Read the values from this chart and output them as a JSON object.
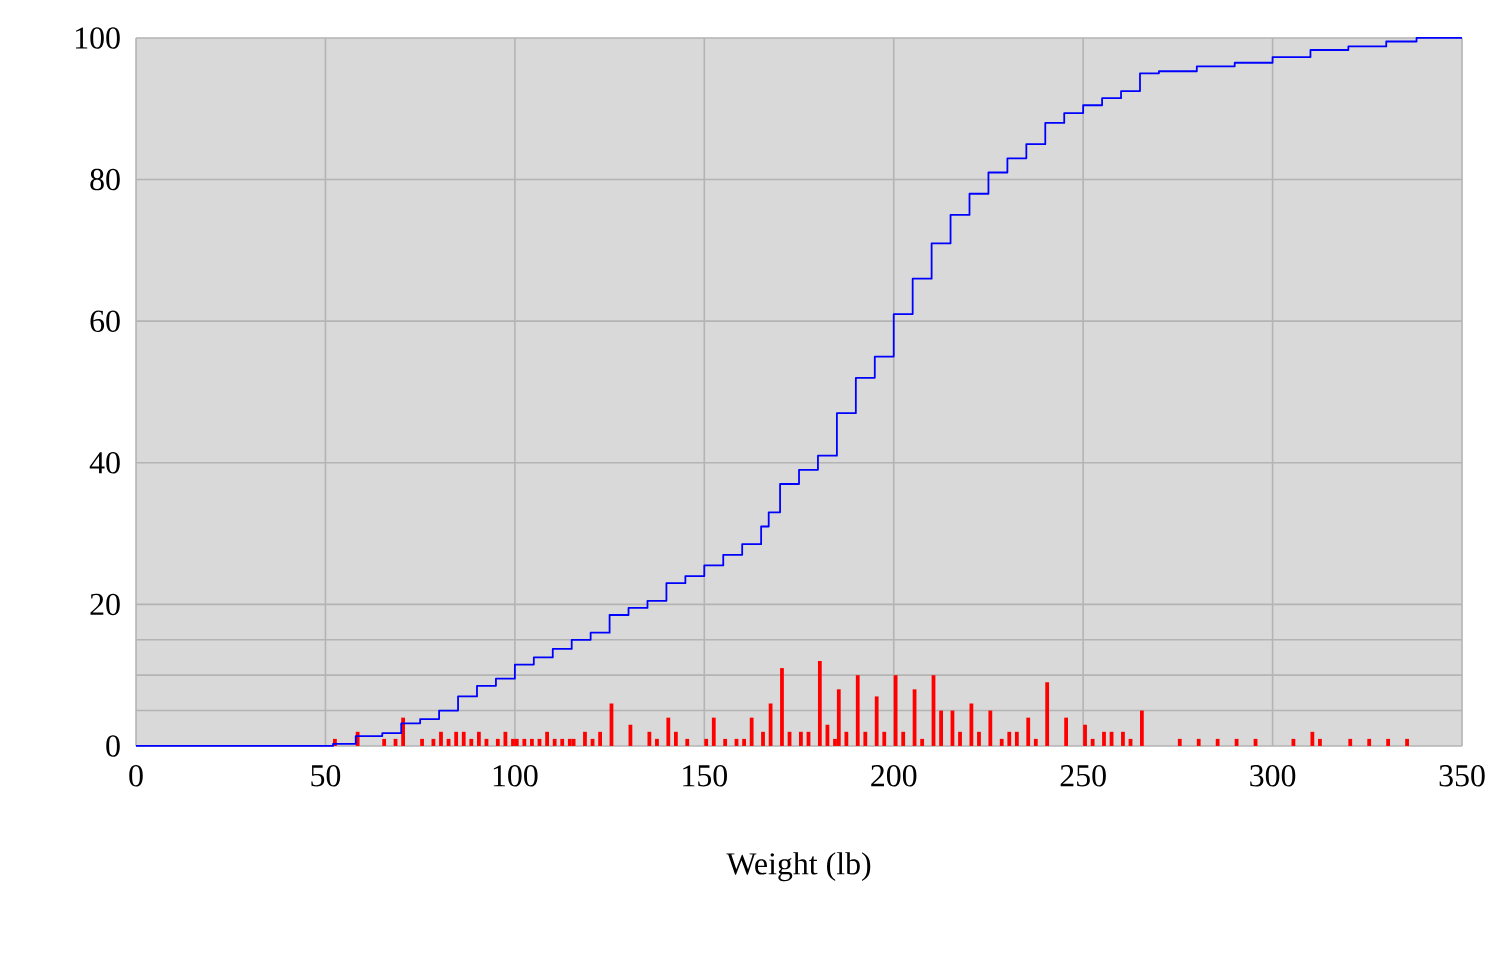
{
  "chart_data": {
    "type": "histogram",
    "xlabel": "Weight (lb)",
    "xlim": [
      0,
      350
    ],
    "xticks": [
      0,
      50,
      100,
      150,
      200,
      250,
      300,
      350
    ],
    "ylim": [
      0,
      100
    ],
    "yticks": [
      0,
      {
        "value": 5,
        "label": null
      },
      {
        "value": 10,
        "label": null
      },
      {
        "value": 15,
        "label": null
      },
      20,
      40,
      60,
      80,
      100
    ],
    "grid": true,
    "bins": [
      50,
      51,
      52,
      53,
      54,
      55,
      56,
      57,
      58,
      59,
      60,
      61,
      62,
      63,
      64,
      65,
      66,
      67,
      68,
      69,
      70,
      71,
      72,
      73,
      74,
      75,
      76,
      77,
      78,
      79,
      80,
      81,
      82,
      83,
      84,
      85,
      86,
      87,
      88,
      89,
      90,
      91,
      92,
      93,
      94,
      95,
      96,
      97,
      98,
      99,
      100,
      101,
      102,
      103,
      104,
      105,
      106,
      107,
      108,
      109,
      110,
      111,
      112,
      113,
      114,
      115,
      116,
      117,
      118,
      119,
      120,
      121,
      122,
      123,
      124,
      125,
      126,
      127,
      128,
      129,
      130,
      131,
      132,
      133,
      134,
      135,
      136,
      137,
      138,
      139,
      140,
      141,
      142,
      143,
      144,
      145,
      146,
      147,
      148,
      149,
      150,
      151,
      152,
      153,
      154,
      155,
      156,
      157,
      158,
      159,
      160,
      161,
      162,
      163,
      164,
      165,
      166,
      167,
      168,
      169,
      170,
      171,
      172,
      173,
      174,
      175,
      176,
      177,
      178,
      179,
      180,
      181,
      182,
      183,
      184,
      185,
      186,
      187,
      188,
      189,
      190,
      191,
      192,
      193,
      194,
      195,
      196,
      197,
      198,
      199,
      200,
      201,
      202,
      203,
      204,
      205,
      206,
      207,
      208,
      209,
      210,
      211,
      212,
      213,
      214,
      215,
      216,
      217,
      218,
      219,
      220,
      221,
      222,
      223,
      224,
      225,
      226,
      227,
      228,
      229,
      230,
      231,
      232,
      233,
      234,
      235,
      236,
      237,
      238,
      239,
      240,
      241,
      242,
      243,
      244,
      245,
      246,
      247,
      248,
      249,
      250,
      251,
      252,
      253,
      254,
      255,
      256,
      257,
      258,
      259,
      260,
      261,
      262,
      263,
      264,
      265,
      266,
      267,
      268,
      269,
      270,
      271,
      272,
      273,
      274,
      275,
      276,
      277,
      278,
      279,
      280,
      281,
      282,
      283,
      284,
      285,
      286,
      287,
      288,
      289,
      290,
      291,
      292,
      293,
      294,
      295,
      296,
      297,
      298,
      299,
      300,
      301,
      302,
      303,
      304,
      305,
      306,
      307,
      308,
      309,
      310,
      311,
      312,
      313,
      314,
      315,
      316,
      317,
      318,
      319,
      320,
      321,
      322,
      323,
      324,
      325,
      326,
      327,
      328,
      329,
      330,
      331,
      332,
      333,
      334,
      335,
      336,
      337,
      338,
      339,
      340
    ],
    "series": [
      {
        "color": "#ff0000",
        "values": [
          0,
          0,
          1,
          0,
          0,
          0,
          0,
          0,
          2,
          0,
          0,
          0,
          0,
          0,
          0,
          1,
          0,
          0,
          1,
          0,
          4,
          0,
          0,
          0,
          0,
          1,
          0,
          0,
          1,
          0,
          2,
          0,
          1,
          0,
          2,
          0,
          2,
          0,
          1,
          0,
          2,
          0,
          1,
          0,
          0,
          1,
          0,
          2,
          0,
          1,
          1,
          0,
          1,
          0,
          1,
          0,
          1,
          0,
          2,
          0,
          1,
          0,
          1,
          0,
          1,
          1,
          0,
          0,
          2,
          0,
          1,
          0,
          2,
          0,
          0,
          6,
          0,
          0,
          0,
          0,
          3,
          0,
          0,
          0,
          0,
          2,
          0,
          1,
          0,
          0,
          4,
          0,
          2,
          0,
          0,
          1,
          0,
          0,
          0,
          0,
          1,
          0,
          4,
          0,
          0,
          1,
          0,
          0,
          1,
          0,
          1,
          0,
          4,
          0,
          0,
          2,
          0,
          6,
          0,
          0,
          11,
          0,
          2,
          0,
          0,
          2,
          0,
          2,
          0,
          0,
          12,
          0,
          3,
          0,
          1,
          8,
          0,
          2,
          0,
          0,
          10,
          0,
          2,
          0,
          0,
          7,
          0,
          2,
          0,
          0,
          10,
          0,
          2,
          0,
          0,
          8,
          0,
          1,
          0,
          0,
          10,
          0,
          5,
          0,
          0,
          5,
          0,
          2,
          0,
          0,
          6,
          0,
          2,
          0,
          0,
          5,
          0,
          0,
          1,
          0,
          2,
          0,
          2,
          0,
          0,
          4,
          0,
          1,
          0,
          0,
          9,
          0,
          0,
          0,
          0,
          4,
          0,
          0,
          0,
          0,
          3,
          0,
          1,
          0,
          0,
          2,
          0,
          2,
          0,
          0,
          2,
          0,
          1,
          0,
          0,
          5,
          0,
          0,
          0,
          0,
          0,
          0,
          0,
          0,
          0,
          1,
          0,
          0,
          0,
          0,
          1,
          0,
          0,
          0,
          0,
          1,
          0,
          0,
          0,
          0,
          1,
          0,
          0,
          0,
          0,
          1,
          0,
          0,
          0,
          0,
          0,
          0,
          0,
          0,
          0,
          1,
          0,
          0,
          0,
          0,
          2,
          0,
          1,
          0,
          0,
          0,
          0,
          0,
          0,
          0,
          1,
          0,
          0,
          0,
          0,
          1,
          0,
          0,
          0,
          0,
          1,
          0,
          0,
          0,
          0,
          1,
          0,
          0,
          0,
          0
        ]
      },
      {
        "type": "step",
        "color": "#0000ff",
        "x": [
          0,
          52,
          58,
          65,
          70,
          75,
          80,
          85,
          90,
          95,
          100,
          105,
          110,
          115,
          120,
          125,
          130,
          135,
          140,
          145,
          150,
          155,
          160,
          165,
          167,
          170,
          175,
          180,
          185,
          190,
          195,
          200,
          205,
          210,
          215,
          220,
          225,
          230,
          235,
          240,
          245,
          250,
          255,
          260,
          265,
          270,
          280,
          290,
          300,
          310,
          320,
          330,
          338,
          350
        ],
        "values": [
          0,
          0.3,
          1.4,
          1.8,
          3.2,
          3.8,
          5,
          7,
          8.5,
          9.5,
          11.5,
          12.5,
          13.7,
          15,
          16,
          18.5,
          19.5,
          20.5,
          23,
          24,
          25.5,
          27,
          28.5,
          31,
          33,
          37,
          39,
          41,
          47,
          52,
          55,
          61,
          66,
          71,
          75,
          78,
          81,
          83,
          85,
          88,
          89.4,
          90.5,
          91.5,
          92.5,
          95,
          95.3,
          96,
          96.5,
          97.3,
          98.3,
          98.8,
          99.5,
          100,
          100
        ]
      }
    ]
  }
}
